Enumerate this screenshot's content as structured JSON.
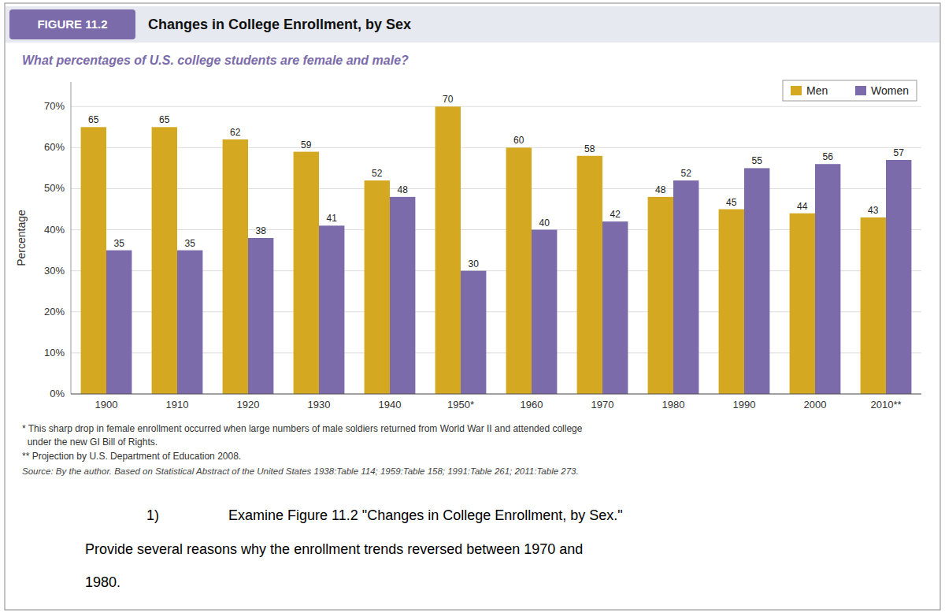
{
  "chart_data": {
    "type": "bar",
    "title": "Changes in College Enrollment, by Sex",
    "subtitle": "What percentages of U.S. college students are female and male?",
    "y_label": "Percentage",
    "categories": [
      "1900",
      "1910",
      "1920",
      "1930",
      "1940",
      "1950*",
      "1960",
      "1970",
      "1980",
      "1990",
      "2000",
      "2010**"
    ],
    "series": [
      {
        "name": "Men",
        "color": "#D4A820",
        "values": [
          65,
          65,
          62,
          59,
          52,
          70,
          60,
          58,
          48,
          45,
          44,
          43
        ]
      },
      {
        "name": "Women",
        "color": "#7B6BAA",
        "values": [
          35,
          35,
          38,
          41,
          48,
          30,
          40,
          42,
          52,
          55,
          56,
          57
        ]
      }
    ],
    "ylim": [
      0,
      76
    ],
    "yticks": [
      {
        "value": 0,
        "label": "0%"
      },
      {
        "value": 10,
        "label": "10%"
      },
      {
        "value": 20,
        "label": "20%"
      },
      {
        "value": 30,
        "label": "30%"
      },
      {
        "value": 40,
        "label": "40%"
      },
      {
        "value": 50,
        "label": "50%"
      },
      {
        "value": 60,
        "label": "60%"
      },
      {
        "value": 70,
        "label": "70%"
      }
    ],
    "grid": true,
    "legend": "upper right",
    "data_labels": true,
    "annotations": [
      "FIGURE 11.2",
      "* This sharp drop in female enrollment occurred when large numbers of male soldiers returned from World War II and attended college",
      "  under the new GI Bill of Rights.",
      "** Projection by U.S. Department of Education 2008.",
      "Source: By the author. Based on Statistical Abstract of the United States 1938:Table 114; 1959:Table 158; 1991:Table 261; 2011:Table 273.",
      "1)",
      "Examine Figure 11.2 \"Changes in College Enrollment, by Sex.\"",
      "Provide several reasons why the enrollment trends reversed between 1970 and",
      "1980."
    ]
  }
}
